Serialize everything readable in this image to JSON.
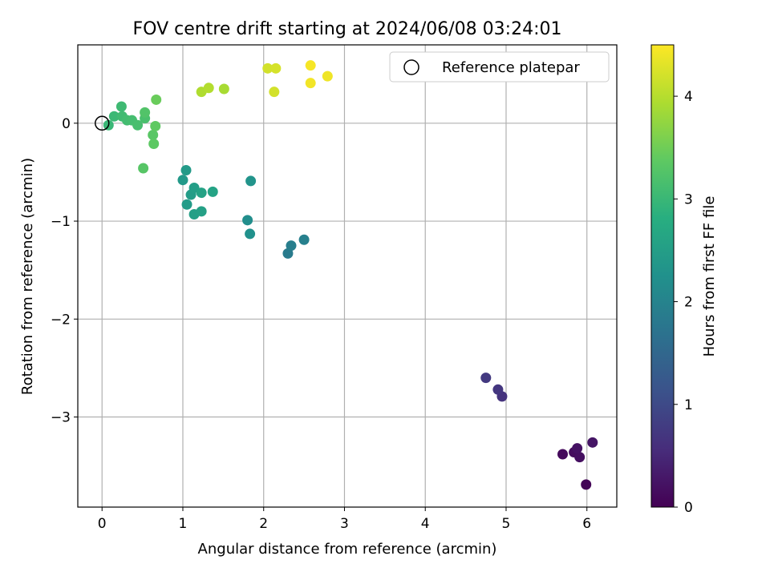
{
  "chart_data": {
    "type": "scatter",
    "title": "FOV centre drift starting at 2024/06/08 03:24:01",
    "xlabel": "Angular distance from reference (arcmin)",
    "ylabel": "Rotation from reference (arcmin)",
    "xlim": [
      -0.3,
      6.37
    ],
    "ylim": [
      -3.92,
      0.8
    ],
    "xticks": [
      0,
      1,
      2,
      3,
      4,
      5,
      6
    ],
    "xtick_labels": [
      "0",
      "1",
      "2",
      "3",
      "4",
      "5",
      "6"
    ],
    "yticks": [
      0,
      -1,
      -2,
      -3
    ],
    "ytick_labels": [
      "0",
      "−1",
      "−2",
      "−3"
    ],
    "grid": true,
    "legend": {
      "placement": "top-right",
      "entries": [
        "Reference platepar"
      ]
    },
    "reference_point": {
      "x": 0,
      "y": 0,
      "label": "Reference platepar"
    },
    "colorbar": {
      "label": "Hours from first FF file",
      "colormap": "viridis",
      "min": 0,
      "max": 4.5,
      "ticks": [
        0,
        1,
        2,
        3,
        4
      ],
      "tick_labels": [
        "0",
        "1",
        "2",
        "3",
        "4"
      ]
    },
    "points": [
      {
        "x": 5.99,
        "y": -3.69,
        "hours": 0.05
      },
      {
        "x": 5.7,
        "y": -3.38,
        "hours": 0.12
      },
      {
        "x": 5.84,
        "y": -3.36,
        "hours": 0.15
      },
      {
        "x": 5.91,
        "y": -3.41,
        "hours": 0.18
      },
      {
        "x": 5.88,
        "y": -3.32,
        "hours": 0.22
      },
      {
        "x": 6.07,
        "y": -3.26,
        "hours": 0.25
      },
      {
        "x": 4.95,
        "y": -2.79,
        "hours": 0.65
      },
      {
        "x": 4.9,
        "y": -2.72,
        "hours": 0.7
      },
      {
        "x": 4.75,
        "y": -2.6,
        "hours": 0.75
      },
      {
        "x": 2.3,
        "y": -1.33,
        "hours": 1.85
      },
      {
        "x": 2.34,
        "y": -1.25,
        "hours": 1.9
      },
      {
        "x": 2.5,
        "y": -1.19,
        "hours": 1.95
      },
      {
        "x": 1.8,
        "y": -0.99,
        "hours": 2.2
      },
      {
        "x": 1.83,
        "y": -1.13,
        "hours": 2.25
      },
      {
        "x": 1.84,
        "y": -0.59,
        "hours": 2.3
      },
      {
        "x": 1.0,
        "y": -0.58,
        "hours": 2.4
      },
      {
        "x": 1.04,
        "y": -0.48,
        "hours": 2.42
      },
      {
        "x": 1.05,
        "y": -0.83,
        "hours": 2.45
      },
      {
        "x": 1.1,
        "y": -0.73,
        "hours": 2.47
      },
      {
        "x": 1.14,
        "y": -0.66,
        "hours": 2.5
      },
      {
        "x": 1.14,
        "y": -0.93,
        "hours": 2.53
      },
      {
        "x": 1.23,
        "y": -0.9,
        "hours": 2.55
      },
      {
        "x": 1.23,
        "y": -0.71,
        "hours": 2.58
      },
      {
        "x": 1.37,
        "y": -0.7,
        "hours": 2.6
      },
      {
        "x": 0.08,
        "y": -0.02,
        "hours": 3.0
      },
      {
        "x": 0.15,
        "y": 0.07,
        "hours": 3.02
      },
      {
        "x": 0.24,
        "y": 0.17,
        "hours": 3.05
      },
      {
        "x": 0.25,
        "y": 0.07,
        "hours": 3.07
      },
      {
        "x": 0.31,
        "y": 0.03,
        "hours": 3.1
      },
      {
        "x": 0.37,
        "y": 0.03,
        "hours": 3.12
      },
      {
        "x": 0.44,
        "y": -0.02,
        "hours": 3.15
      },
      {
        "x": 0.53,
        "y": 0.05,
        "hours": 3.17
      },
      {
        "x": 0.53,
        "y": 0.11,
        "hours": 3.25
      },
      {
        "x": 0.51,
        "y": -0.46,
        "hours": 3.3
      },
      {
        "x": 0.63,
        "y": -0.12,
        "hours": 3.32
      },
      {
        "x": 0.64,
        "y": -0.21,
        "hours": 3.35
      },
      {
        "x": 0.66,
        "y": -0.03,
        "hours": 3.37
      },
      {
        "x": 0.67,
        "y": 0.24,
        "hours": 3.45
      },
      {
        "x": 1.51,
        "y": 0.35,
        "hours": 3.9
      },
      {
        "x": 1.23,
        "y": 0.32,
        "hours": 3.95
      },
      {
        "x": 1.32,
        "y": 0.36,
        "hours": 3.98
      },
      {
        "x": 2.05,
        "y": 0.56,
        "hours": 4.2
      },
      {
        "x": 2.15,
        "y": 0.56,
        "hours": 4.22
      },
      {
        "x": 2.13,
        "y": 0.32,
        "hours": 4.2
      },
      {
        "x": 2.58,
        "y": 0.59,
        "hours": 4.45
      },
      {
        "x": 2.58,
        "y": 0.41,
        "hours": 4.42
      },
      {
        "x": 2.79,
        "y": 0.48,
        "hours": 4.4
      }
    ]
  }
}
